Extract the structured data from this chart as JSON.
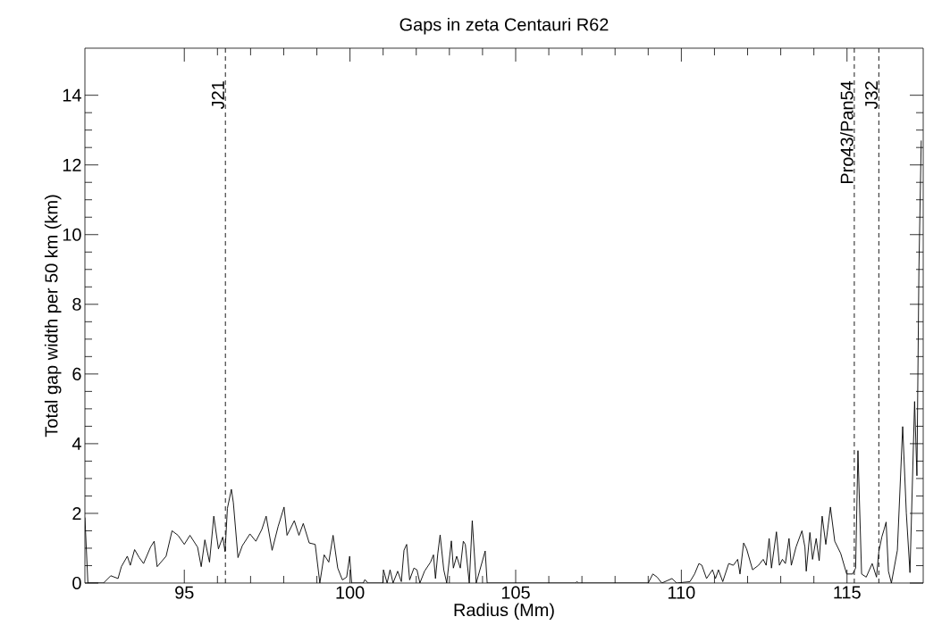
{
  "chart_data": {
    "type": "line",
    "title": "Gaps in zeta Centauri R62",
    "xlabel": "Radius (Mm)",
    "ylabel": "Total gap width per 50 km (km)",
    "xlim": [
      92,
      117.3
    ],
    "ylim": [
      0,
      15.35
    ],
    "xticks": [
      95,
      100,
      105,
      110,
      115
    ],
    "yticks": [
      0,
      2,
      4,
      6,
      8,
      10,
      12,
      14
    ],
    "ref_lines": [
      {
        "axis": "x",
        "value": 96.24,
        "label": "J21",
        "color": "#000000",
        "line_style": "dashed"
      },
      {
        "axis": "x",
        "value": 115.22,
        "label": "Pro43/Pan54",
        "color": "#000000",
        "line_style": "dashed"
      },
      {
        "axis": "x",
        "value": 115.96,
        "label": "J32",
        "color": "#000000",
        "line_style": "dashed"
      }
    ],
    "series": [
      {
        "color": "#000000",
        "x": [
          92.0,
          92.09,
          92.56,
          92.78,
          93.0,
          93.1,
          93.28,
          93.37,
          93.5,
          93.64,
          93.77,
          93.98,
          94.09,
          94.18,
          94.45,
          94.63,
          94.81,
          95.0,
          95.17,
          95.4,
          95.51,
          95.62,
          95.76,
          95.89,
          96.03,
          96.16,
          96.23,
          96.3,
          96.42,
          96.48,
          96.62,
          96.75,
          96.98,
          97.16,
          97.34,
          97.47,
          97.65,
          97.83,
          98.01,
          98.1,
          98.32,
          98.46,
          98.59,
          98.77,
          98.95,
          99.09,
          99.22,
          99.36,
          99.49,
          99.63,
          99.77,
          99.9,
          99.99,
          100.05,
          100.4,
          100.45,
          100.54,
          100.99,
          101.01,
          101.12,
          101.21,
          101.3,
          101.44,
          101.55,
          101.63,
          101.71,
          101.8,
          101.93,
          102.02,
          102.11,
          102.25,
          102.43,
          102.52,
          102.58,
          102.65,
          102.72,
          102.83,
          102.92,
          103.06,
          103.12,
          103.22,
          103.33,
          103.42,
          103.48,
          103.6,
          103.69,
          103.81,
          104.08,
          104.14,
          106.8,
          106.85,
          106.9,
          109.0,
          109.14,
          109.27,
          109.41,
          109.72,
          109.86,
          110.26,
          110.4,
          110.53,
          110.62,
          110.76,
          110.94,
          111.03,
          111.12,
          111.25,
          111.43,
          111.57,
          111.7,
          111.77,
          111.88,
          111.97,
          112.15,
          112.33,
          112.47,
          112.56,
          112.65,
          112.72,
          112.87,
          112.96,
          113.05,
          113.14,
          113.25,
          113.32,
          113.46,
          113.64,
          113.73,
          113.77,
          113.88,
          113.96,
          114.07,
          114.16,
          114.25,
          114.36,
          114.5,
          114.63,
          114.81,
          114.99,
          115.17,
          115.26,
          115.33,
          115.44,
          115.58,
          115.76,
          115.89,
          115.96,
          116.05,
          116.12,
          116.18,
          116.25,
          116.34,
          116.52,
          116.68,
          116.79,
          116.9,
          117.04,
          117.11,
          117.17,
          117.24
        ],
        "values": [
          1.88,
          0,
          0,
          0.21,
          0.13,
          0.47,
          0.77,
          0.51,
          0.96,
          0.73,
          0.56,
          1.03,
          1.2,
          0.47,
          0.77,
          1.5,
          1.37,
          1.11,
          1.37,
          1.03,
          0.47,
          1.24,
          0.6,
          1.92,
          0.98,
          1.32,
          0.9,
          2.14,
          2.69,
          2.31,
          0.73,
          1.07,
          1.41,
          1.2,
          1.54,
          1.92,
          0.94,
          1.62,
          2.18,
          1.37,
          1.79,
          1.37,
          1.71,
          1.15,
          1.11,
          0,
          0.81,
          0.6,
          1.37,
          0.43,
          0.09,
          0.17,
          0.77,
          0,
          0,
          0.1,
          0,
          0,
          0.38,
          0,
          0.38,
          0,
          0.34,
          0.04,
          0.94,
          1.11,
          0.09,
          0.43,
          0.38,
          0,
          0.34,
          0.6,
          0.81,
          0.13,
          0.85,
          1.38,
          0.38,
          0,
          1.21,
          0.43,
          0.77,
          0.43,
          1.2,
          1.11,
          0,
          1.79,
          0,
          0.92,
          0,
          0,
          0.04,
          0,
          0,
          0.26,
          0.17,
          0,
          0.13,
          0,
          0.04,
          0.26,
          0.56,
          0.51,
          0.13,
          0.38,
          0.13,
          0.38,
          0.04,
          0.56,
          0.51,
          0.68,
          0.26,
          1.15,
          0.98,
          0.38,
          0.51,
          0.68,
          0.51,
          1.28,
          0.43,
          1.47,
          0.51,
          0.68,
          0.56,
          1.28,
          0.51,
          1.03,
          1.5,
          1.03,
          0.34,
          1.45,
          0.68,
          1.28,
          0.64,
          1.92,
          1.11,
          2.18,
          1.2,
          0.85,
          0.26,
          0.26,
          0.43,
          3.8,
          0.26,
          0.17,
          0.56,
          0.17,
          0.9,
          1.32,
          1.54,
          1.75,
          0.34,
          0,
          0.94,
          4.49,
          2.01,
          0.3,
          5.21,
          3.08,
          9.0,
          12.7
        ]
      }
    ]
  }
}
